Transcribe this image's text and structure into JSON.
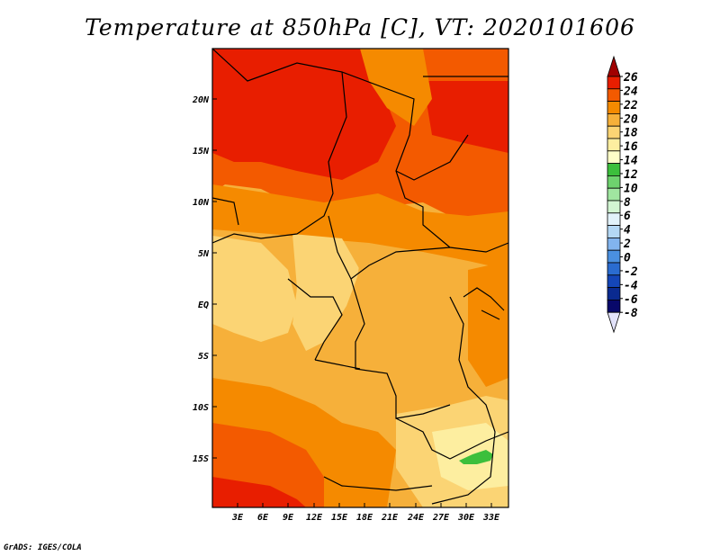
{
  "title": "Temperature at 850hPa [C], VT: 2020101606",
  "footer": "GrADS: IGES/COLA",
  "map": {
    "lat_labels": [
      "20N",
      "15N",
      "10N",
      "5N",
      "EQ",
      "5S",
      "10S",
      "15S"
    ],
    "lon_labels": [
      "3E",
      "6E",
      "9E",
      "12E",
      "15E",
      "18E",
      "21E",
      "24E",
      "27E",
      "30E",
      "33E"
    ]
  },
  "colorbar": {
    "levels": [
      "26",
      "24",
      "22",
      "20",
      "18",
      "16",
      "14",
      "12",
      "10",
      "8",
      "6",
      "4",
      "2",
      "0",
      "-2",
      "-4",
      "-6",
      "-8"
    ],
    "colors": [
      "#a00000",
      "#e81e00",
      "#f35a00",
      "#f58a00",
      "#f6b03a",
      "#fbd474",
      "#fdeea0",
      "#ffffc8",
      "#3cbf3c",
      "#6ed26e",
      "#a0e6a0",
      "#d2f5d2",
      "#e2f2fa",
      "#b4d8f5",
      "#82b4ee",
      "#4a90e0",
      "#2a6cd0",
      "#1446b8",
      "#0a2a90",
      "#08086a",
      "#e2e2fa"
    ]
  }
}
